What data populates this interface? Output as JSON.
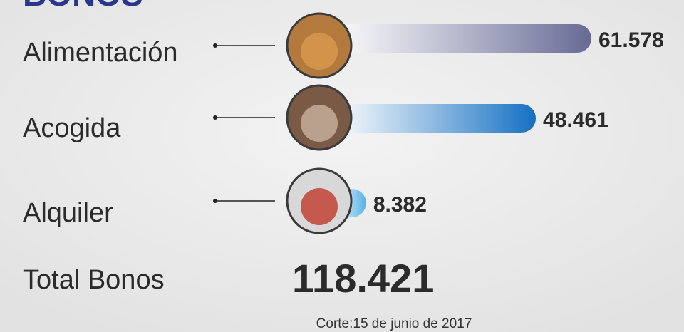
{
  "chart_data": {
    "type": "bar",
    "orientation": "horizontal",
    "title": "BONOS",
    "categories": [
      "Alimentación",
      "Acogida",
      "Alquiler"
    ],
    "values": [
      61578,
      48461,
      8382
    ],
    "value_labels": [
      "61.578",
      "48.461",
      "8.382"
    ],
    "colors": [
      "#666a94",
      "#1470c2",
      "#55b2e6"
    ],
    "total_label": "Total Bonos",
    "total": {
      "value": 118421,
      "label": "118.421"
    },
    "note": "Corte:15 de junio de 2017"
  }
}
